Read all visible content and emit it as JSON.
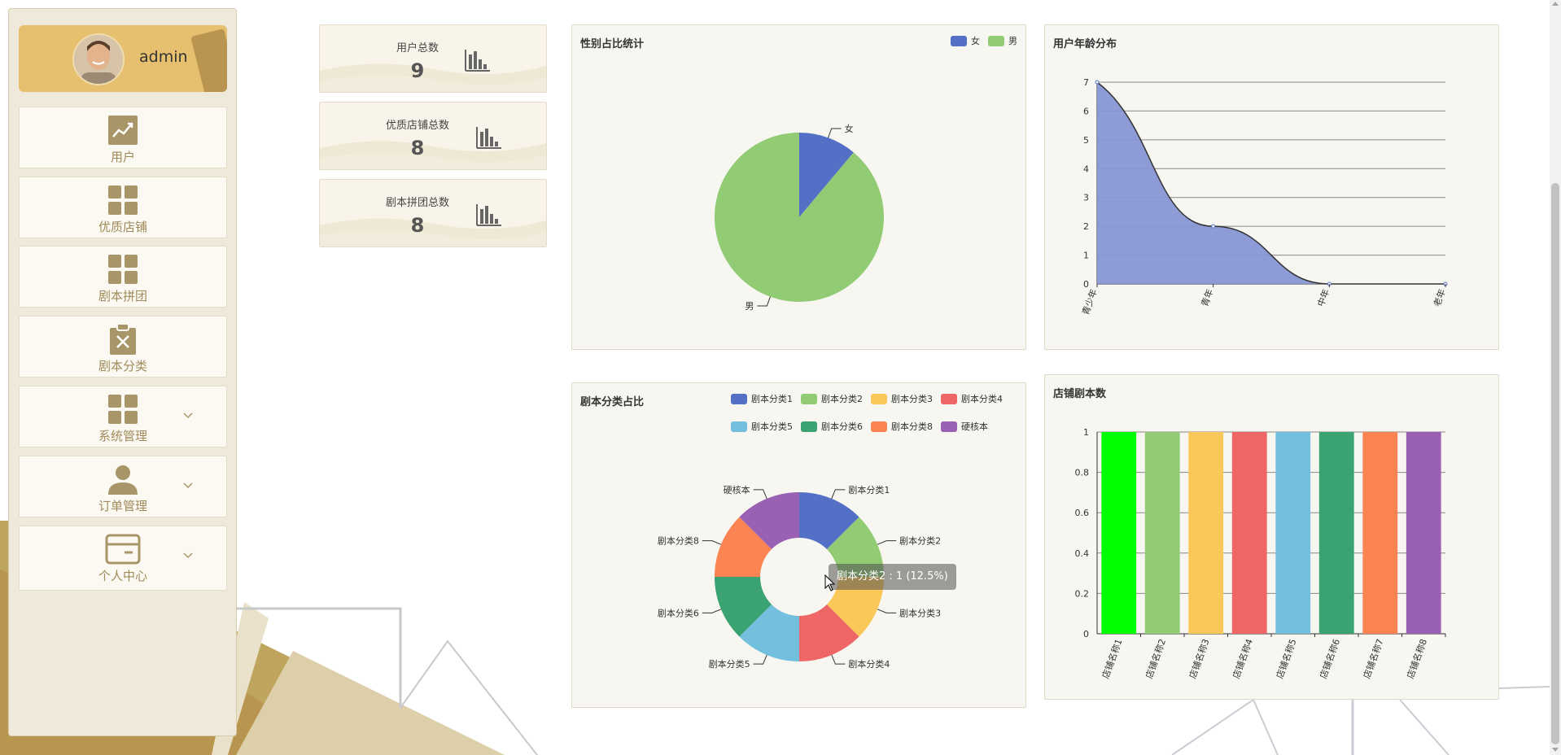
{
  "user": {
    "name": "admin"
  },
  "sidebar": {
    "items": [
      {
        "label": "用户",
        "icon": "trend-chart-icon",
        "has_submenu": false
      },
      {
        "label": "优质店铺",
        "icon": "grid-icon",
        "has_submenu": false
      },
      {
        "label": "剧本拼团",
        "icon": "grid-icon",
        "has_submenu": false
      },
      {
        "label": "剧本分类",
        "icon": "clipboard-x-icon",
        "has_submenu": false
      },
      {
        "label": "系统管理",
        "icon": "grid-icon",
        "has_submenu": true
      },
      {
        "label": "订单管理",
        "icon": "person-icon",
        "has_submenu": true
      },
      {
        "label": "个人中心",
        "icon": "card-icon",
        "has_submenu": true
      }
    ]
  },
  "stats": [
    {
      "label": "用户总数",
      "value": "9",
      "icon": "bar-chart-icon"
    },
    {
      "label": "优质店铺总数",
      "value": "8",
      "icon": "bar-chart-icon"
    },
    {
      "label": "剧本拼团总数",
      "value": "8",
      "icon": "bar-chart-icon"
    }
  ],
  "panels": {
    "gender": {
      "title": "性别占比统计"
    },
    "age": {
      "title": "用户年龄分布"
    },
    "category": {
      "title": "剧本分类占比"
    },
    "shop": {
      "title": "店铺剧本数"
    }
  },
  "tooltip": {
    "text": "剧本分类2 : 1 (12.5%)"
  },
  "colors": {
    "accent": "#e6c06f",
    "menu_text": "#a08a5a",
    "icon": "#a89668"
  },
  "chart_data": [
    {
      "type": "pie",
      "title": "性别占比统计",
      "legend": [
        "女",
        "男"
      ],
      "legend_position": "top-right",
      "categories": [
        "女",
        "男"
      ],
      "values": [
        1,
        8
      ],
      "colors": [
        "#5470c6",
        "#91cc75"
      ]
    },
    {
      "type": "area",
      "title": "用户年龄分布",
      "categories": [
        "青少年",
        "青年",
        "中年",
        "老年"
      ],
      "values": [
        7,
        2,
        0,
        0
      ],
      "ylim": [
        0,
        7
      ],
      "yticks": [
        0,
        1,
        2,
        3,
        4,
        5,
        6,
        7
      ],
      "grid": true,
      "color": "#8796d4"
    },
    {
      "type": "pie",
      "subtype": "donut",
      "title": "剧本分类占比",
      "legend": [
        "剧本分类1",
        "剧本分类2",
        "剧本分类3",
        "剧本分类4",
        "剧本分类5",
        "剧本分类6",
        "剧本分类8",
        "硬核本"
      ],
      "legend_position": "top-right",
      "categories": [
        "剧本分类1",
        "剧本分类2",
        "剧本分类3",
        "剧本分类4",
        "剧本分类5",
        "剧本分类6",
        "剧本分类8",
        "硬核本"
      ],
      "values": [
        1,
        1,
        1,
        1,
        1,
        1,
        1,
        1
      ],
      "colors": [
        "#5470c6",
        "#91cc75",
        "#fac858",
        "#ee6666",
        "#73c0de",
        "#3ba272",
        "#fc8452",
        "#9a60b4"
      ]
    },
    {
      "type": "bar",
      "title": "店铺剧本数",
      "categories": [
        "店铺名称1",
        "店铺名称2",
        "店铺名称3",
        "店铺名称4",
        "店铺名称5",
        "店铺名称6",
        "店铺名称7",
        "店铺名称8"
      ],
      "values": [
        1,
        1,
        1,
        1,
        1,
        1,
        1,
        1
      ],
      "ylim": [
        0,
        1
      ],
      "yticks": [
        "0",
        "0.2",
        "0.4",
        "0.6",
        "0.8",
        "1"
      ],
      "grid": true,
      "colors": [
        "#00ff00",
        "#91cc75",
        "#fac858",
        "#ee6666",
        "#73c0de",
        "#3ba272",
        "#fc8452",
        "#9a60b4"
      ]
    }
  ]
}
